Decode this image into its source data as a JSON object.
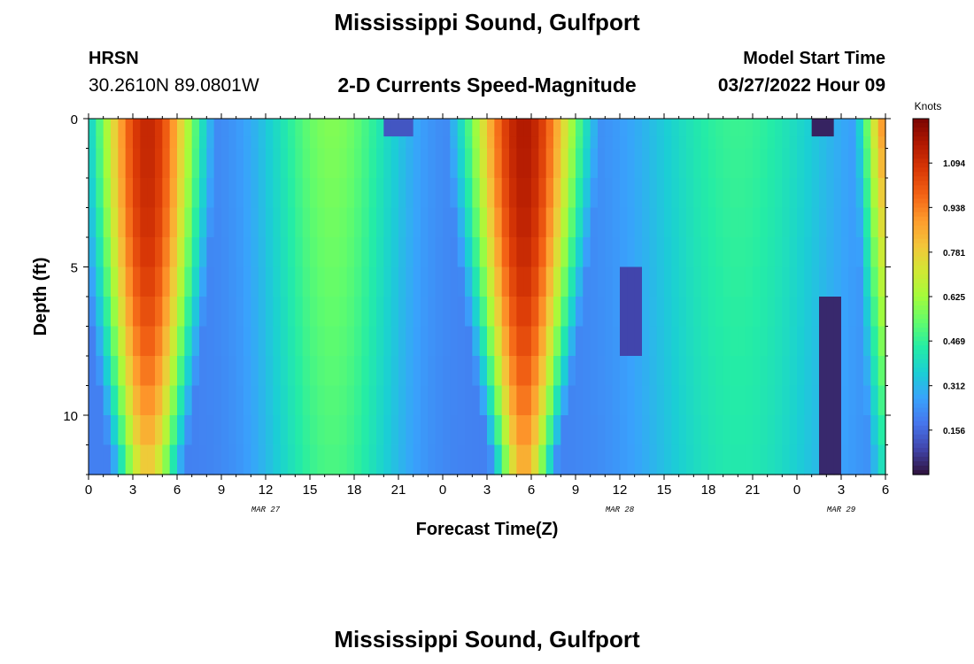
{
  "header": {
    "title": "Mississippi Sound, Gulfport",
    "station": "HRSN",
    "coordinates": "30.2610N  89.0801W",
    "subtitle": "2-D Currents Speed-Magnitude",
    "model_start_label": "Model Start Time",
    "model_start_value": "03/27/2022 Hour 09"
  },
  "footer": {
    "title": "Mississippi Sound, Gulfport"
  },
  "chart_data": {
    "type": "heatmap",
    "xlabel": "Forecast Time(Z)",
    "ylabel": "Depth (ft)",
    "colorbar_label": "Knots",
    "colorbar_ticks": [
      "0.156",
      "0.312",
      "0.469",
      "0.625",
      "0.781",
      "0.938",
      "1.094"
    ],
    "value_range": [
      0.0,
      1.25
    ],
    "x_tick_labels": [
      "0",
      "3",
      "6",
      "9",
      "12",
      "15",
      "18",
      "21",
      "0",
      "3",
      "6",
      "9",
      "12",
      "15",
      "18",
      "21",
      "0",
      "3",
      "6"
    ],
    "date_labels": [
      {
        "text": "MAR 27",
        "hour": 12
      },
      {
        "text": "MAR 28",
        "hour": 36
      },
      {
        "text": "MAR 29",
        "hour": 51
      }
    ],
    "y_ticks": [
      0,
      5,
      10
    ],
    "ylim": [
      0,
      12
    ],
    "xlim": [
      0,
      54
    ],
    "colormap": [
      "#30123b",
      "#4145ab",
      "#4675ed",
      "#39a2fc",
      "#1bcfd4",
      "#24eca6",
      "#61fc6c",
      "#a4fc3b",
      "#d1e834",
      "#f3c63a",
      "#fe9b2d",
      "#f36315",
      "#d93806",
      "#b11901",
      "#7a0403"
    ],
    "grid": false,
    "legend": "colorbar-right"
  }
}
